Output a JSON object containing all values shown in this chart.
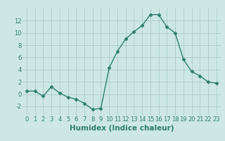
{
  "x": [
    0,
    1,
    2,
    3,
    4,
    5,
    6,
    7,
    8,
    9,
    10,
    11,
    12,
    13,
    14,
    15,
    16,
    17,
    18,
    19,
    20,
    21,
    22,
    23
  ],
  "y": [
    0.5,
    0.5,
    -0.3,
    1.2,
    0.2,
    -0.5,
    -0.8,
    -1.5,
    -2.5,
    -2.3,
    4.3,
    7.0,
    9.0,
    10.2,
    11.2,
    13.0,
    13.0,
    11.0,
    10.0,
    5.7,
    3.7,
    3.0,
    2.0,
    1.8
  ],
  "line_color": "#2e7d6e",
  "marker": "D",
  "marker_size": 2.5,
  "bg_color": "#cde8e4",
  "grid_color": "#afd0cc",
  "xlabel": "Humidex (Indice chaleur)",
  "xlim": [
    -0.5,
    23.5
  ],
  "ylim": [
    -3.5,
    14.0
  ],
  "yticks": [
    -2,
    0,
    2,
    4,
    6,
    8,
    10,
    12
  ],
  "xticks": [
    0,
    1,
    2,
    3,
    4,
    5,
    6,
    7,
    8,
    9,
    10,
    11,
    12,
    13,
    14,
    15,
    16,
    17,
    18,
    19,
    20,
    21,
    22,
    23
  ],
  "tick_fontsize": 6,
  "label_fontsize": 7.5
}
